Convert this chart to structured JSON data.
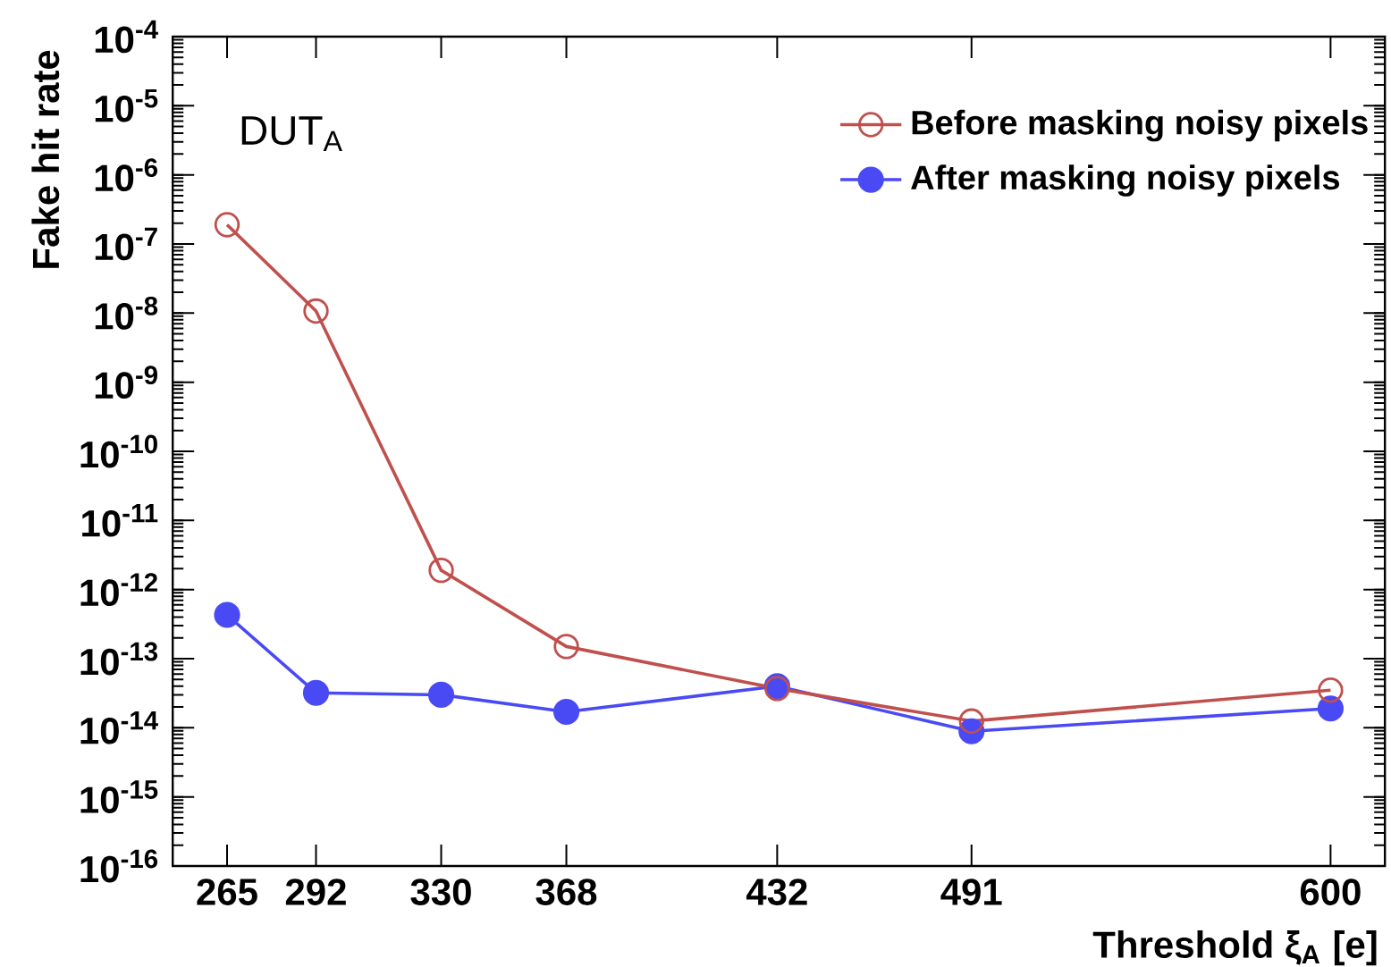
{
  "chart_data": {
    "type": "line",
    "xlabel": "Threshold ξ$_{A}$ [e]",
    "ylabel": "Fake hit rate",
    "annotations": [
      "DUT$_{A}$"
    ],
    "x": [
      265,
      292,
      330,
      368,
      432,
      491,
      600
    ],
    "series": [
      {
        "name": "Before masking noisy pixels",
        "color": "#c0504d",
        "marker": "open circle",
        "values": [
          1.9e-07,
          1.07e-08,
          1.9e-12,
          1.5e-13,
          3.7e-14,
          1.25e-14,
          3.5e-14
        ]
      },
      {
        "name": "After masking noisy pixels",
        "color": "#4a4af5",
        "marker": "circle",
        "values": [
          4.3e-13,
          3.2e-14,
          3e-14,
          1.7e-14,
          4e-14,
          8.9e-15,
          1.9e-14
        ]
      }
    ],
    "log": "y",
    "xlim": [
      248.5,
      616.5
    ],
    "ylim": [
      1e-16,
      0.0001
    ],
    "xticks": [
      265,
      292,
      330,
      368,
      432,
      491,
      600
    ],
    "yticks": [
      {
        "value": 1e-16,
        "label": "10$^{-16}$"
      },
      {
        "value": 1e-15,
        "label": "10$^{-15}$"
      },
      {
        "value": 1e-14,
        "label": "10$^{-14}$"
      },
      {
        "value": 1e-13,
        "label": "10$^{-13}$"
      },
      {
        "value": 1e-12,
        "label": "10$^{-12}$"
      },
      {
        "value": 1e-11,
        "label": "10$^{-11}$"
      },
      {
        "value": 1e-10,
        "label": "10$^{-10}$"
      },
      {
        "value": 1e-09,
        "label": "10$^{-9}$"
      },
      {
        "value": 1e-08,
        "label": "10$^{-8}$"
      },
      {
        "value": 1e-07,
        "label": "10$^{-7}$"
      },
      {
        "value": 1e-06,
        "label": "10$^{-6}$"
      },
      {
        "value": 1e-05,
        "label": "10$^{-5}$"
      },
      {
        "value": 0.0001,
        "label": "10$^{-4}$"
      }
    ],
    "legend": "top right",
    "grid": false,
    "line_style": "solid"
  }
}
